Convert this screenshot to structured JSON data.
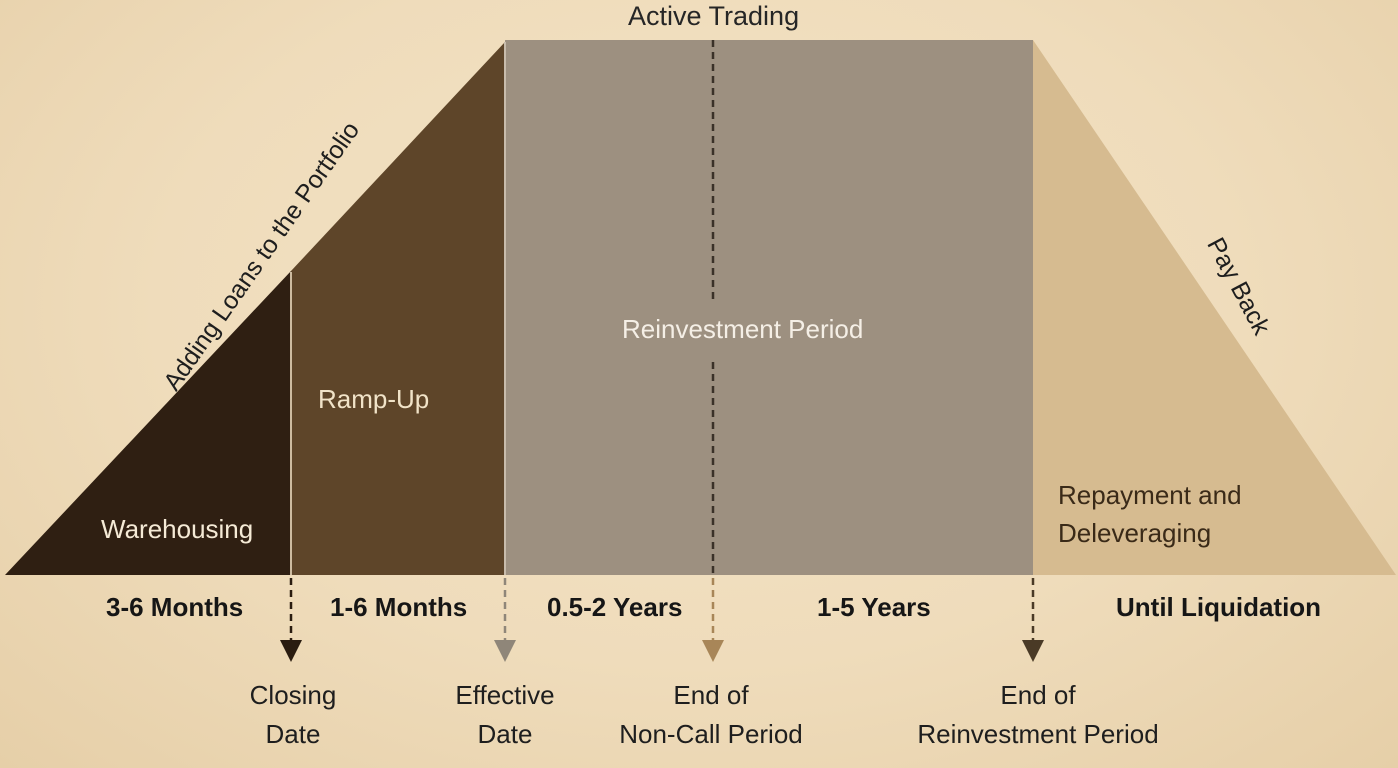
{
  "header": {
    "active_trading": "Active Trading"
  },
  "diagram": {
    "slope_label": "Adding Loans to the Portfolio",
    "payback_label": "Pay Back",
    "phases": {
      "warehousing": "Warehousing",
      "ramp_up": "Ramp-Up",
      "reinvestment": "Reinvestment Period",
      "repayment": "Repayment and Deleveraging"
    }
  },
  "durations": [
    "3-6 Months",
    "1-6 Months",
    "0.5-2 Years",
    "1-5 Years",
    "Until Liquidation"
  ],
  "milestones": [
    {
      "line1": "Closing",
      "line2": "Date"
    },
    {
      "line1": "Effective",
      "line2": "Date"
    },
    {
      "line1": "End of",
      "line2": "Non-Call Period"
    },
    {
      "line1": "End of",
      "line2": "Reinvestment Period"
    }
  ],
  "colors": {
    "background": "#efdcbb",
    "warehousing": "#2f1f12",
    "ramp_up": "#5e4529",
    "reinvestment": "#9d9080",
    "payback": "#d6bb90",
    "arrow_closing": "#2a1c10",
    "arrow_effective": "#8f8679",
    "arrow_noncall": "#a88658",
    "arrow_reinvestment": "#4a3a26"
  }
}
